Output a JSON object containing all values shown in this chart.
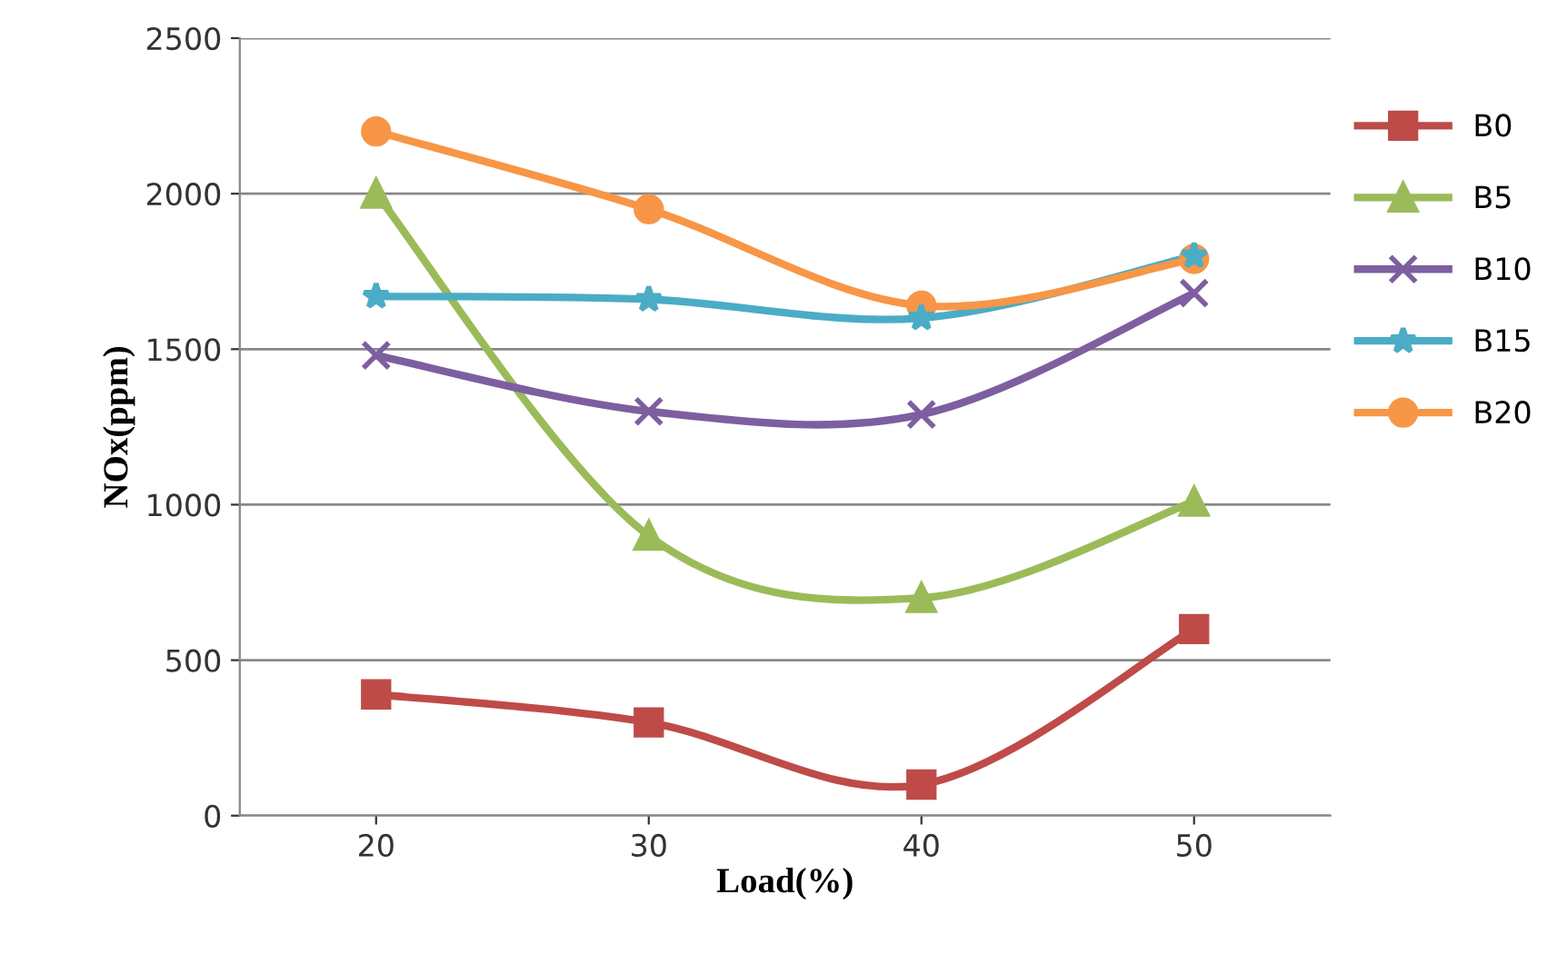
{
  "chart_data": {
    "type": "line",
    "xlabel": "Load(%)",
    "ylabel": "NOx(ppm)",
    "categories": [
      "20",
      "30",
      "40",
      "50"
    ],
    "ylim": [
      0,
      2500
    ],
    "yticks": [
      0,
      500,
      1000,
      1500,
      2000,
      2500
    ],
    "grid": "y",
    "legend": "right",
    "line_style": "solid",
    "series": [
      {
        "name": "B0",
        "color": "#be4b48",
        "marker": "square",
        "values": [
          390,
          300,
          100,
          600
        ]
      },
      {
        "name": "B5",
        "color": "#9bbb59",
        "marker": "triangle",
        "values": [
          2000,
          900,
          700,
          1010
        ]
      },
      {
        "name": "B10",
        "color": "#7d5fa0",
        "marker": "cross",
        "values": [
          1480,
          1300,
          1290,
          1680
        ]
      },
      {
        "name": "B15",
        "color": "#4bacc6",
        "marker": "star",
        "values": [
          1670,
          1660,
          1600,
          1800
        ]
      },
      {
        "name": "B20",
        "color": "#f79646",
        "marker": "circle",
        "values": [
          2200,
          1950,
          1640,
          1790
        ]
      }
    ]
  }
}
